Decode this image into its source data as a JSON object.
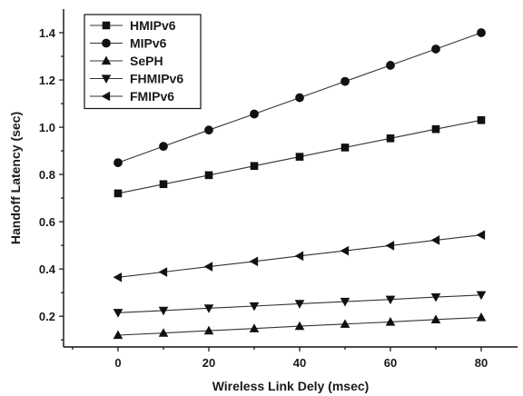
{
  "chart_data": {
    "type": "line",
    "xlabel": "Wireless Link Dely (msec)",
    "ylabel": "Handoff Latency (sec)",
    "xlim": [
      -12,
      88
    ],
    "ylim": [
      0.07,
      1.5
    ],
    "x_ticks": [
      0,
      20,
      40,
      60,
      80
    ],
    "y_ticks": [
      0.2,
      0.4,
      0.6,
      0.8,
      1.0,
      1.2,
      1.4
    ],
    "x_tick_labels": [
      "0",
      "20",
      "40",
      "60",
      "80"
    ],
    "y_tick_labels": [
      "0.2",
      "0.4",
      "0.6",
      "0.8",
      "1.0",
      "1.2",
      "1.4"
    ],
    "x": [
      0,
      10,
      20,
      30,
      40,
      50,
      60,
      70,
      80
    ],
    "legend_position": "top-left",
    "grid": false,
    "series": [
      {
        "name": "HMIPv6",
        "marker": "square",
        "values": [
          0.72,
          0.759,
          0.797,
          0.836,
          0.875,
          0.914,
          0.953,
          0.992,
          1.03
        ]
      },
      {
        "name": "MIPv6",
        "marker": "circle",
        "values": [
          0.85,
          0.919,
          0.988,
          1.056,
          1.125,
          1.194,
          1.262,
          1.331,
          1.4
        ]
      },
      {
        "name": "SePH",
        "marker": "triangle-up",
        "values": [
          0.12,
          0.129,
          0.139,
          0.148,
          0.158,
          0.167,
          0.176,
          0.186,
          0.195
        ]
      },
      {
        "name": "FHMIPv6",
        "marker": "triangle-down",
        "values": [
          0.215,
          0.224,
          0.234,
          0.243,
          0.253,
          0.262,
          0.271,
          0.281,
          0.29
        ]
      },
      {
        "name": "FMIPv6",
        "marker": "triangle-left",
        "values": [
          0.365,
          0.387,
          0.41,
          0.432,
          0.455,
          0.477,
          0.499,
          0.522,
          0.544
        ]
      }
    ]
  }
}
